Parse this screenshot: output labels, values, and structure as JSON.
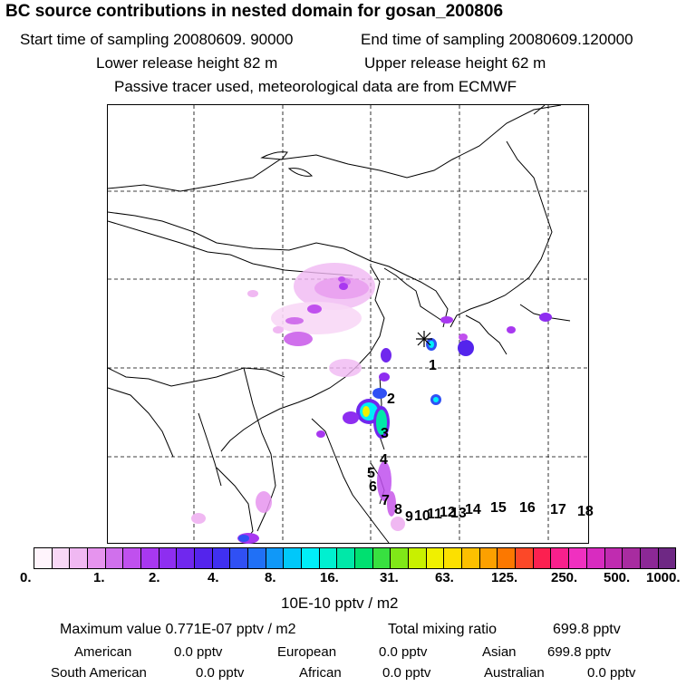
{
  "header": {
    "title": "BC  source contributions in nested domain for gosan_200806",
    "start_time": "Start time of sampling 20080609. 90000",
    "end_time": "End time of sampling 20080609.120000",
    "lower_height": "Lower release height   82 m",
    "upper_height": "Upper release height   62 m",
    "tracer_note": "Passive tracer used, meteorological data are from ECMWF"
  },
  "map": {
    "region_labels": [
      "1",
      "2",
      "3",
      "4",
      "5",
      "6",
      "7",
      "8",
      "9",
      "10",
      "11",
      "12",
      "13",
      "14",
      "15",
      "16",
      "17",
      "18"
    ]
  },
  "colorbar": {
    "colors": [
      "#fff4fc",
      "#f8d8f6",
      "#f0b8f2",
      "#e694ee",
      "#d070ec",
      "#c050ee",
      "#a838f0",
      "#8e2ef0",
      "#7028ee",
      "#5424ec",
      "#4030f0",
      "#3050f4",
      "#2070f6",
      "#1098f8",
      "#00c8fa",
      "#00eef8",
      "#00f0d0",
      "#00e8a8",
      "#00e070",
      "#38e040",
      "#80e818",
      "#c8f000",
      "#f0f000",
      "#fce000",
      "#fcc000",
      "#fca000",
      "#fc7800",
      "#fc4828",
      "#fc2050",
      "#f8208c",
      "#f030c0",
      "#d82cc0",
      "#c02cb0",
      "#a82ca0",
      "#8c2896",
      "#6e2884"
    ],
    "tick_labels": [
      "0.",
      "1.",
      "2.",
      "4.",
      "8.",
      "16.",
      "31.",
      "63.",
      "125.",
      "250.",
      "500.",
      "1000."
    ],
    "unit": "10E-10 pptv / m2"
  },
  "summary": {
    "max_value": "Maximum value  0.771E-07 pptv / m2",
    "total_mixing": "Total mixing ratio",
    "total_value": "699.8 pptv",
    "american_label": "American",
    "american_value": "0.0 pptv",
    "european_label": "European",
    "european_value": "0.0 pptv",
    "asian_label": "Asian",
    "asian_value": "699.8 pptv",
    "south_american_label": "South American",
    "south_american_value": "0.0 pptv",
    "african_label": "African",
    "african_value": "0.0 pptv",
    "australian_label": "Australian",
    "australian_value": "0.0 pptv"
  }
}
